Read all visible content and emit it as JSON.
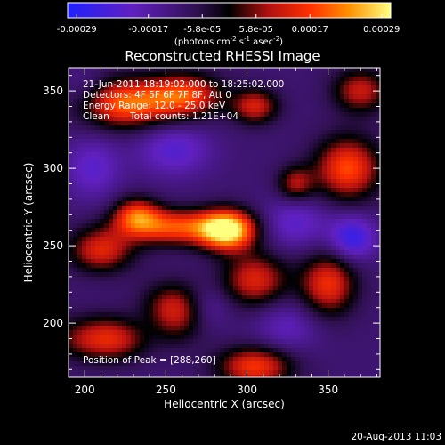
{
  "chart_data": {
    "type": "heatmap",
    "title": "Reconstructed RHESSI Image",
    "xlabel": "Heliocentric X (arcsec)",
    "ylabel": "Heliocentric Y (arcsec)",
    "xlim": [
      190,
      382
    ],
    "ylim": [
      165,
      365
    ],
    "x_ticks": [
      200,
      250,
      300,
      350
    ],
    "y_ticks": [
      200,
      250,
      300,
      350
    ],
    "colorbar": {
      "ticks": [
        "-0.00029",
        "-0.00017",
        "-5.8e-05",
        "5.8e-05",
        "0.00017",
        "0.00029"
      ],
      "min": -0.00029,
      "max": 0.00029,
      "units_line1": "(photons cm",
      "units_sup1": "-2",
      "units_mid": " s",
      "units_sup2": "-1",
      "units_line2": " asec",
      "units_sup3": "-2",
      "units_end": ")"
    },
    "annotations": [
      "21-Jun-2011 18:19:02.000 to 18:25:02.000",
      "Detectors: 4F 5F 6F 7F 8F, Att 0",
      "Energy Range: 12.0 - 25.0 keV",
      "Clean",
      "Total counts: 1.21E+04"
    ],
    "peak_label": "Position of Peak = [288,260]",
    "peak": {
      "x": 288,
      "y": 260,
      "value": 0.00029
    },
    "blobs": [
      {
        "x": 288,
        "y": 260,
        "value": 0.00029,
        "sx": 12,
        "sy": 9
      },
      {
        "x": 255,
        "y": 262,
        "value": 0.00016,
        "sx": 22,
        "sy": 8
      },
      {
        "x": 225,
        "y": 342,
        "value": 0.00018,
        "sx": 20,
        "sy": 11
      },
      {
        "x": 262,
        "y": 347,
        "value": 0.00014,
        "sx": 16,
        "sy": 10
      },
      {
        "x": 305,
        "y": 340,
        "value": 0.0001,
        "sx": 10,
        "sy": 8
      },
      {
        "x": 370,
        "y": 350,
        "value": 9e-05,
        "sx": 12,
        "sy": 10
      },
      {
        "x": 362,
        "y": 300,
        "value": 0.00016,
        "sx": 14,
        "sy": 14
      },
      {
        "x": 350,
        "y": 225,
        "value": 0.00013,
        "sx": 12,
        "sy": 14
      },
      {
        "x": 215,
        "y": 190,
        "value": 0.00013,
        "sx": 22,
        "sy": 10
      },
      {
        "x": 255,
        "y": 208,
        "value": 0.00012,
        "sx": 14,
        "sy": 12
      },
      {
        "x": 305,
        "y": 228,
        "value": 0.00011,
        "sx": 14,
        "sy": 12
      },
      {
        "x": 305,
        "y": 172,
        "value": 0.00014,
        "sx": 16,
        "sy": 9
      },
      {
        "x": 210,
        "y": 247,
        "value": 0.00011,
        "sx": 14,
        "sy": 10
      },
      {
        "x": 232,
        "y": 270,
        "value": 0.00012,
        "sx": 10,
        "sy": 8
      },
      {
        "x": 330,
        "y": 290,
        "value": 7e-05,
        "sx": 8,
        "sy": 8
      },
      {
        "x": 255,
        "y": 312,
        "value": -0.00013,
        "sx": 16,
        "sy": 12
      },
      {
        "x": 330,
        "y": 265,
        "value": -0.00012,
        "sx": 14,
        "sy": 12
      },
      {
        "x": 365,
        "y": 255,
        "value": -0.00018,
        "sx": 10,
        "sy": 10
      },
      {
        "x": 240,
        "y": 195,
        "value": -0.0001,
        "sx": 12,
        "sy": 12
      },
      {
        "x": 205,
        "y": 300,
        "value": -0.00012,
        "sx": 12,
        "sy": 14
      },
      {
        "x": 325,
        "y": 198,
        "value": -0.0001,
        "sx": 14,
        "sy": 12
      },
      {
        "x": 275,
        "y": 210,
        "value": -0.0001,
        "sx": 10,
        "sy": 10
      },
      {
        "x": 200,
        "y": 350,
        "value": -8e-05,
        "sx": 10,
        "sy": 10
      }
    ]
  },
  "footer": {
    "date_stamp": "20-Aug-2013 11:03"
  }
}
